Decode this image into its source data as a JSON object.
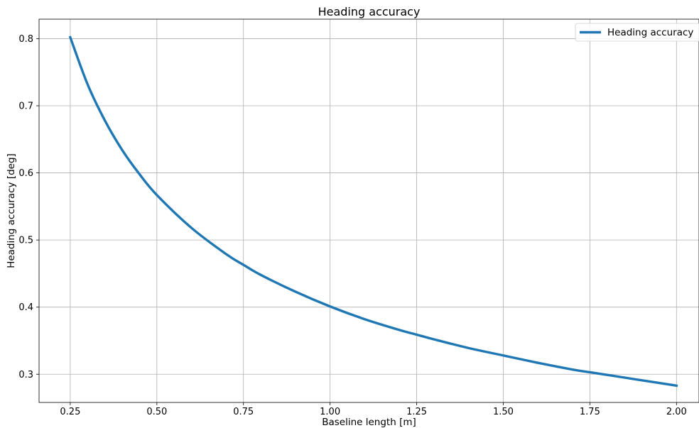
{
  "chart_data": {
    "type": "line",
    "title": "Heading accuracy",
    "xlabel": "Baseline length [m]",
    "ylabel": "Heading accuracy [deg]",
    "xlim": [
      0.16,
      2.065
    ],
    "ylim": [
      0.258,
      0.829
    ],
    "x_ticks": [
      0.25,
      0.5,
      0.75,
      1.0,
      1.25,
      1.5,
      1.75,
      2.0
    ],
    "x_tick_labels": [
      "0.25",
      "0.50",
      "0.75",
      "1.00",
      "1.25",
      "1.50",
      "1.75",
      "2.00"
    ],
    "y_ticks": [
      0.3,
      0.4,
      0.5,
      0.6,
      0.7,
      0.8
    ],
    "y_tick_labels": [
      "0.3",
      "0.4",
      "0.5",
      "0.6",
      "0.7",
      "0.8"
    ],
    "grid": true,
    "legend_position": "top-right",
    "series": [
      {
        "name": "Heading accuracy",
        "color": "#1f77b4",
        "x": [
          0.25,
          0.3,
          0.35,
          0.4,
          0.45,
          0.5,
          0.6,
          0.7,
          0.75,
          0.8,
          0.9,
          1.0,
          1.1,
          1.2,
          1.25,
          1.3,
          1.4,
          1.5,
          1.6,
          1.7,
          1.75,
          1.8,
          1.9,
          2.0
        ],
        "y": [
          0.802,
          0.732,
          0.678,
          0.634,
          0.598,
          0.567,
          0.518,
          0.479,
          0.463,
          0.448,
          0.423,
          0.401,
          0.382,
          0.366,
          0.359,
          0.352,
          0.339,
          0.328,
          0.317,
          0.307,
          0.303,
          0.299,
          0.291,
          0.283
        ]
      }
    ]
  }
}
